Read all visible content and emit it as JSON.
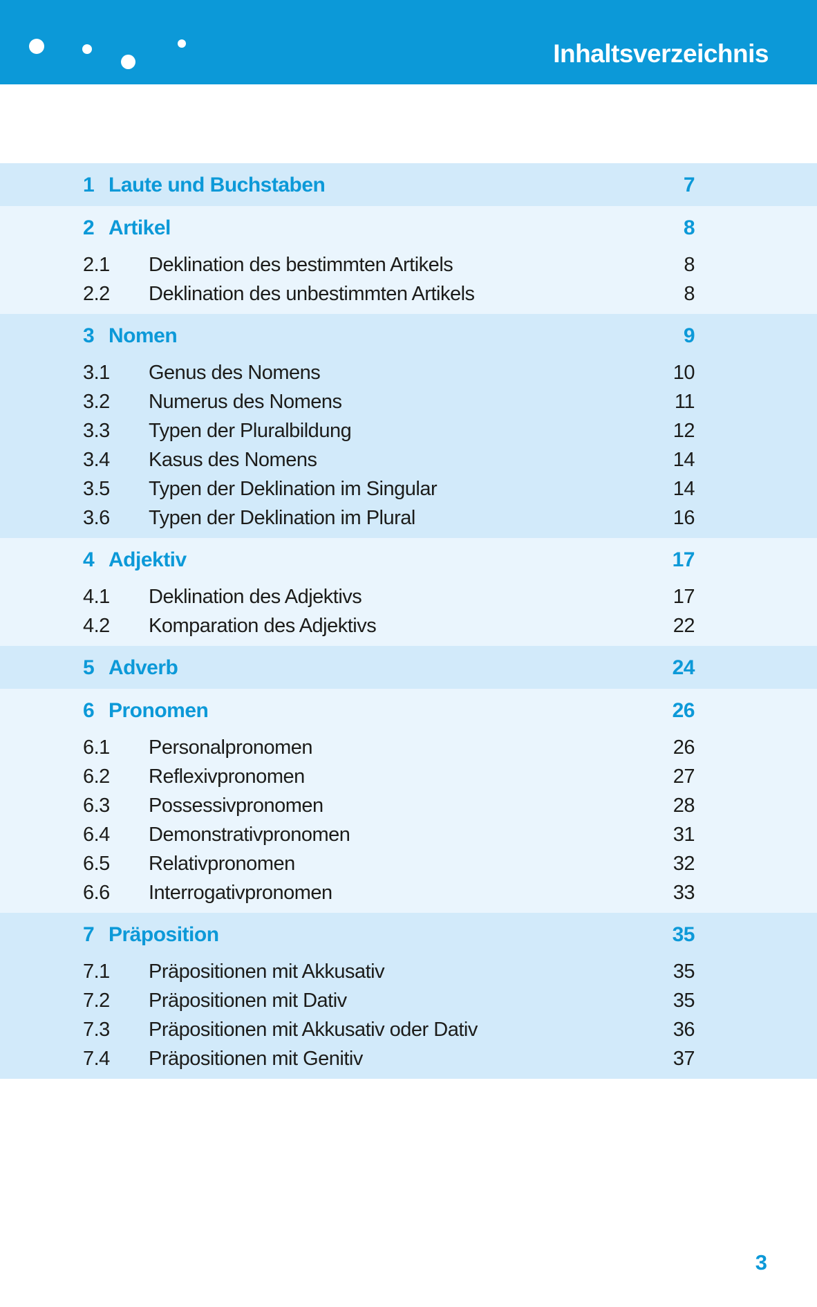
{
  "colors": {
    "accent": "#0c99d8",
    "band_dark": "#d2eafa",
    "band_light": "#eaf5fd",
    "text": "#1c1c1a",
    "header_background": "#0c99d8"
  },
  "header": {
    "title": "Inhaltsverzeichnis",
    "decor_dots": 4
  },
  "folio": "3",
  "toc": {
    "chapters": [
      {
        "num": "1",
        "title": "Laute und Buchstaben",
        "page": "7",
        "shade": "dark",
        "sections": []
      },
      {
        "num": "2",
        "title": "Artikel",
        "page": "8",
        "shade": "light",
        "sections": [
          {
            "num": "2.1",
            "title": "Deklination des bestimmten Artikels",
            "page": "8"
          },
          {
            "num": "2.2",
            "title": "Deklination des unbestimmten Artikels",
            "page": "8"
          }
        ]
      },
      {
        "num": "3",
        "title": "Nomen",
        "page": "9",
        "shade": "dark",
        "sections": [
          {
            "num": "3.1",
            "title": "Genus des Nomens",
            "page": "10"
          },
          {
            "num": "3.2",
            "title": "Numerus des Nomens",
            "page": "11"
          },
          {
            "num": "3.3",
            "title": "Typen der Pluralbildung",
            "page": "12"
          },
          {
            "num": "3.4",
            "title": "Kasus des Nomens",
            "page": "14"
          },
          {
            "num": "3.5",
            "title": "Typen der Deklination im Singular",
            "page": "14"
          },
          {
            "num": "3.6",
            "title": "Typen der Deklination im Plural",
            "page": "16"
          }
        ]
      },
      {
        "num": "4",
        "title": "Adjektiv",
        "page": "17",
        "shade": "light",
        "sections": [
          {
            "num": "4.1",
            "title": "Deklination des Adjektivs",
            "page": "17"
          },
          {
            "num": "4.2",
            "title": "Komparation des Adjektivs",
            "page": "22"
          }
        ]
      },
      {
        "num": "5",
        "title": "Adverb",
        "page": "24",
        "shade": "dark",
        "sections": []
      },
      {
        "num": "6",
        "title": "Pronomen",
        "page": "26",
        "shade": "light",
        "sections": [
          {
            "num": "6.1",
            "title": "Personalpronomen",
            "page": "26"
          },
          {
            "num": "6.2",
            "title": "Reflexivpronomen",
            "page": "27"
          },
          {
            "num": "6.3",
            "title": "Possessivpronomen",
            "page": "28"
          },
          {
            "num": "6.4",
            "title": "Demonstrativpronomen",
            "page": "31"
          },
          {
            "num": "6.5",
            "title": "Relativpronomen",
            "page": "32"
          },
          {
            "num": "6.6",
            "title": "Interrogativpronomen",
            "page": "33"
          }
        ]
      },
      {
        "num": "7",
        "title": "Präposition",
        "page": "35",
        "shade": "dark",
        "sections": [
          {
            "num": "7.1",
            "title": "Präpositionen mit Akkusativ",
            "page": "35"
          },
          {
            "num": "7.2",
            "title": "Präpositionen mit Dativ",
            "page": "35"
          },
          {
            "num": "7.3",
            "title": "Präpositionen mit Akkusativ oder Dativ",
            "page": "36"
          },
          {
            "num": "7.4",
            "title": "Präpositionen mit Genitiv",
            "page": "37"
          }
        ]
      }
    ]
  }
}
